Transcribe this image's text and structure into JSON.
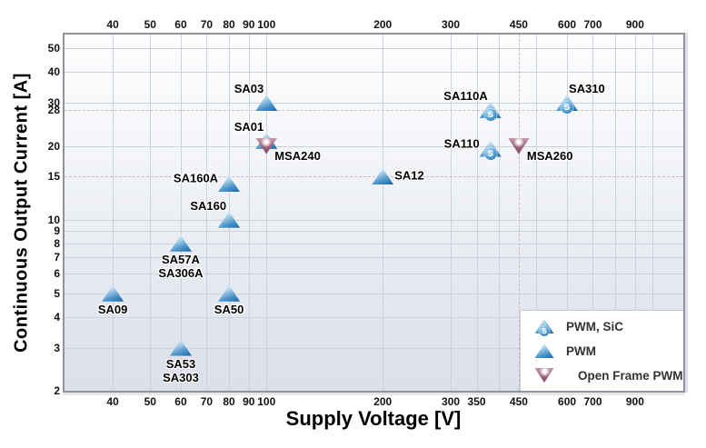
{
  "chart_data": {
    "type": "scatter",
    "title": "",
    "xlabel": "Supply Voltage [V]",
    "ylabel": "Continuous Output Current [A]",
    "x_scale": "log",
    "y_scale": "log",
    "x_range": [
      30,
      1200
    ],
    "y_range": [
      2,
      57
    ],
    "grid": true,
    "legend_position": "bottom-right",
    "x_ticks_top": [
      40,
      50,
      60,
      70,
      80,
      90,
      100,
      200,
      300,
      450,
      600,
      700,
      900
    ],
    "x_ticks_bottom": [
      40,
      50,
      60,
      70,
      80,
      90,
      100,
      200,
      300,
      350,
      450,
      600,
      700,
      900
    ],
    "y_ticks": [
      50,
      40,
      30,
      28,
      20,
      15,
      10,
      9,
      8,
      7,
      6,
      5,
      4,
      3,
      2
    ],
    "x_gridlines": [
      40,
      50,
      60,
      70,
      80,
      90,
      100,
      200,
      300,
      350,
      400,
      500,
      600,
      700,
      800,
      900,
      1000
    ],
    "y_gridlines": [
      3,
      4,
      5,
      6,
      7,
      8,
      9,
      10,
      20,
      30,
      40,
      50
    ],
    "x_dashed_lines": [
      450
    ],
    "y_dashed_lines": [
      28,
      15
    ],
    "series": [
      {
        "name": "PWM, SiC",
        "marker": "triangle-up-s",
        "points": [
          {
            "label": "SA110A",
            "x": 380,
            "y": 28,
            "label_pos": "above-left"
          },
          {
            "label": "SA110",
            "x": 380,
            "y": 19.5,
            "label_pos": "left"
          },
          {
            "label": "SA310",
            "x": 600,
            "y": 30,
            "label_pos": "above-right"
          }
        ]
      },
      {
        "name": "PWM",
        "marker": "triangle-up",
        "points": [
          {
            "label": "SA09",
            "x": 40,
            "y": 5,
            "label_pos": "below"
          },
          {
            "label": "SA53\nSA303",
            "x": 60,
            "y": 3,
            "label_pos": "below"
          },
          {
            "label": "SA57A\nSA306A",
            "x": 60,
            "y": 8,
            "label_pos": "below"
          },
          {
            "label": "SA50",
            "x": 80,
            "y": 5,
            "label_pos": "below"
          },
          {
            "label": "SA160",
            "x": 80,
            "y": 10,
            "label_pos": "above-left"
          },
          {
            "label": "SA160A",
            "x": 80,
            "y": 14,
            "label_pos": "left"
          },
          {
            "label": "SA03",
            "x": 100,
            "y": 30,
            "label_pos": "above-left"
          },
          {
            "label": "SA01",
            "x": 100,
            "y": 21,
            "label_pos": "above-left"
          },
          {
            "label": "SA12",
            "x": 200,
            "y": 15,
            "label_pos": "right"
          }
        ]
      },
      {
        "name": "Open Frame PWM",
        "marker": "triangle-down",
        "points": [
          {
            "label": "MSA240",
            "x": 100,
            "y": 20,
            "label_pos": "below-right"
          },
          {
            "label": "MSA260",
            "x": 450,
            "y": 20,
            "label_pos": "below-right"
          }
        ]
      }
    ]
  },
  "badge_text": "S",
  "colors": {
    "pwm_triangle_blue": "#1d6ba8",
    "sic_badge_blue": "#1a62a4",
    "open_frame_maroon": "#7e4363",
    "grid_line": "#ccd2db",
    "dashed_line": "#c8bbc2",
    "plot_bg_top": "#fdfdfe",
    "plot_bg_bottom": "#dbdfea",
    "tick_text": "#111111",
    "legend_text": "#333333"
  }
}
